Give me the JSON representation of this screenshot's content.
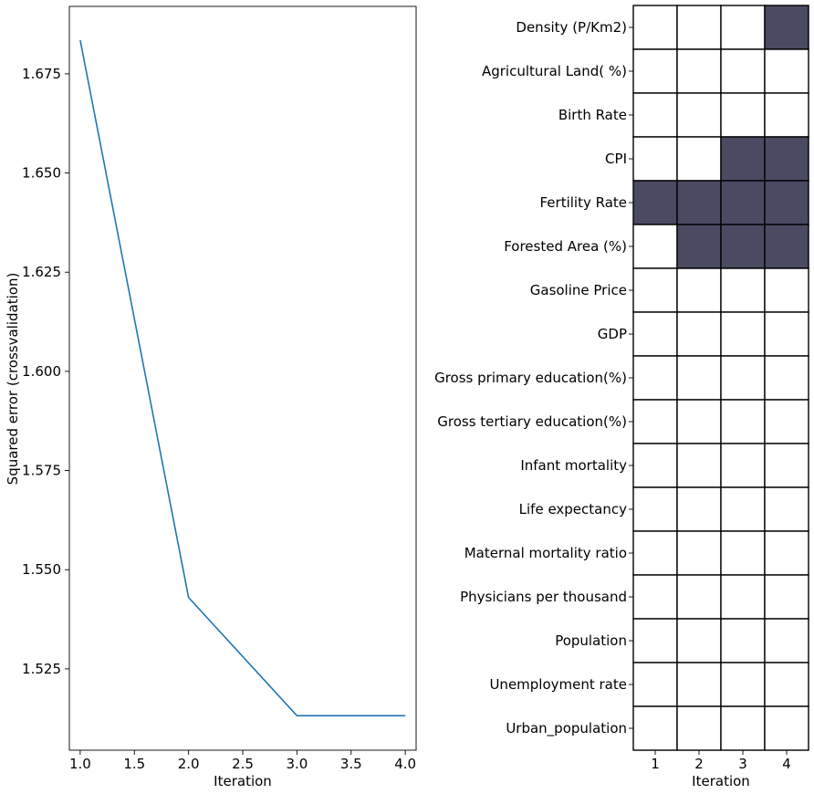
{
  "chart_data": [
    {
      "type": "line",
      "xlabel": "Iteration",
      "ylabel": "Squared error (crossvalidation)",
      "x": [
        1.0,
        2.0,
        3.0,
        4.0
      ],
      "y": [
        1.6835,
        1.543,
        1.5132,
        1.5132
      ],
      "xlim": [
        0.9,
        4.1
      ],
      "ylim": [
        1.5045,
        1.692
      ],
      "xticks": [
        1.0,
        1.5,
        2.0,
        2.5,
        3.0,
        3.5,
        4.0
      ],
      "xtick_labels": [
        "1.0",
        "1.5",
        "2.0",
        "2.5",
        "3.0",
        "3.5",
        "4.0"
      ],
      "yticks": [
        1.525,
        1.55,
        1.575,
        1.6,
        1.625,
        1.65,
        1.675
      ],
      "ytick_labels": [
        "1.525",
        "1.550",
        "1.575",
        "1.600",
        "1.625",
        "1.650",
        "1.675"
      ],
      "grid": false,
      "line_color": "#1f77b4"
    },
    {
      "type": "heatmap",
      "xlabel": "Iteration",
      "x_categories": [
        "1",
        "2",
        "3",
        "4"
      ],
      "y_categories": [
        "Density (P/Km2)",
        "Agricultural Land( %)",
        "Birth Rate",
        "CPI",
        "Fertility Rate",
        "Forested Area (%)",
        "Gasoline Price",
        "GDP",
        "Gross primary education(%)",
        "Gross tertiary education(%)",
        "Infant mortality",
        "Life expectancy",
        "Maternal mortality ratio",
        "Physicians per thousand",
        "Population",
        "Unemployment rate",
        "Urban_population"
      ],
      "values": [
        [
          0,
          0,
          0,
          1
        ],
        [
          0,
          0,
          0,
          0
        ],
        [
          0,
          0,
          0,
          0
        ],
        [
          0,
          0,
          1,
          1
        ],
        [
          1,
          1,
          1,
          1
        ],
        [
          0,
          1,
          1,
          1
        ],
        [
          0,
          0,
          0,
          0
        ],
        [
          0,
          0,
          0,
          0
        ],
        [
          0,
          0,
          0,
          0
        ],
        [
          0,
          0,
          0,
          0
        ],
        [
          0,
          0,
          0,
          0
        ],
        [
          0,
          0,
          0,
          0
        ],
        [
          0,
          0,
          0,
          0
        ],
        [
          0,
          0,
          0,
          0
        ],
        [
          0,
          0,
          0,
          0
        ],
        [
          0,
          0,
          0,
          0
        ],
        [
          0,
          0,
          0,
          0
        ]
      ],
      "on_color": "#4a4a63",
      "off_color": "#ffffff",
      "grid": true
    }
  ]
}
